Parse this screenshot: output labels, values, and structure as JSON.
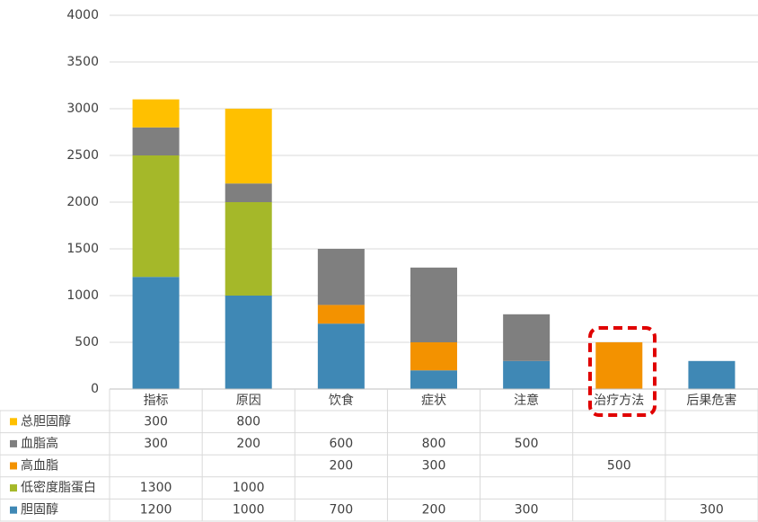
{
  "chart_data": {
    "type": "stacked_bar",
    "categories": [
      "指标",
      "原因",
      "饮食",
      "症状",
      "注意",
      "治疗方法",
      "后果危害"
    ],
    "series": [
      {
        "name": "胆固醇",
        "color": "#3f88b5",
        "values": [
          1200,
          1000,
          700,
          200,
          300,
          null,
          300
        ]
      },
      {
        "name": "低密度脂蛋白",
        "color": "#a5b829",
        "values": [
          1300,
          1000,
          null,
          null,
          null,
          null,
          null
        ]
      },
      {
        "name": "高血脂",
        "color": "#f39200",
        "values": [
          null,
          null,
          200,
          300,
          null,
          500,
          null
        ]
      },
      {
        "name": "血脂高",
        "color": "#7f7f7f",
        "values": [
          300,
          200,
          600,
          800,
          500,
          null,
          null
        ]
      },
      {
        "name": "总胆固醇",
        "color": "#ffc000",
        "values": [
          300,
          800,
          null,
          null,
          null,
          null,
          null
        ]
      }
    ],
    "ylim": [
      0,
      4000
    ],
    "yticks": [
      0,
      500,
      1000,
      1500,
      2000,
      2500,
      3000,
      3500,
      4000
    ],
    "grid": true
  }
}
